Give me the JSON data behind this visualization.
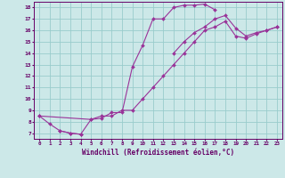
{
  "bg_color": "#cce8e8",
  "line_color": "#993399",
  "marker_color": "#993399",
  "grid_color": "#99cccc",
  "axis_label_color": "#660066",
  "tick_color": "#660066",
  "xlabel": "Windchill (Refroidissement éolien,°C)",
  "xlim": [
    -0.5,
    23.5
  ],
  "ylim": [
    6.5,
    18.5
  ],
  "xticks": [
    0,
    1,
    2,
    3,
    4,
    5,
    6,
    7,
    8,
    9,
    10,
    11,
    12,
    13,
    14,
    15,
    16,
    17,
    18,
    19,
    20,
    21,
    22,
    23
  ],
  "yticks": [
    7,
    8,
    9,
    10,
    11,
    12,
    13,
    14,
    15,
    16,
    17,
    18
  ],
  "series": [
    {
      "x": [
        0,
        1,
        2,
        3,
        4
      ],
      "y": [
        8.5,
        7.8,
        7.2,
        7.0,
        6.9
      ]
    },
    {
      "x": [
        2,
        3,
        4,
        5,
        6,
        7,
        8,
        9,
        10,
        11,
        12,
        13,
        14,
        15,
        16,
        17
      ],
      "y": [
        7.2,
        7.0,
        6.9,
        8.2,
        8.3,
        8.8,
        8.8,
        12.8,
        14.7,
        17.0,
        17.0,
        18.0,
        18.2,
        18.2,
        18.3,
        17.8
      ]
    },
    {
      "x": [
        13,
        14,
        15,
        16,
        17,
        18,
        19,
        20,
        21,
        22,
        23
      ],
      "y": [
        14.0,
        15.0,
        15.8,
        16.3,
        17.0,
        17.3,
        16.2,
        15.5,
        15.8,
        16.0,
        16.3
      ]
    },
    {
      "x": [
        0,
        5,
        6,
        7,
        8,
        9,
        10,
        11,
        12,
        13,
        14,
        15,
        16,
        17,
        18,
        19,
        20,
        21,
        22,
        23
      ],
      "y": [
        8.5,
        8.2,
        8.5,
        8.5,
        9.0,
        9.0,
        10.0,
        11.0,
        12.0,
        13.0,
        14.0,
        15.0,
        16.0,
        16.3,
        16.8,
        15.5,
        15.3,
        15.7,
        16.0,
        16.3
      ]
    }
  ]
}
